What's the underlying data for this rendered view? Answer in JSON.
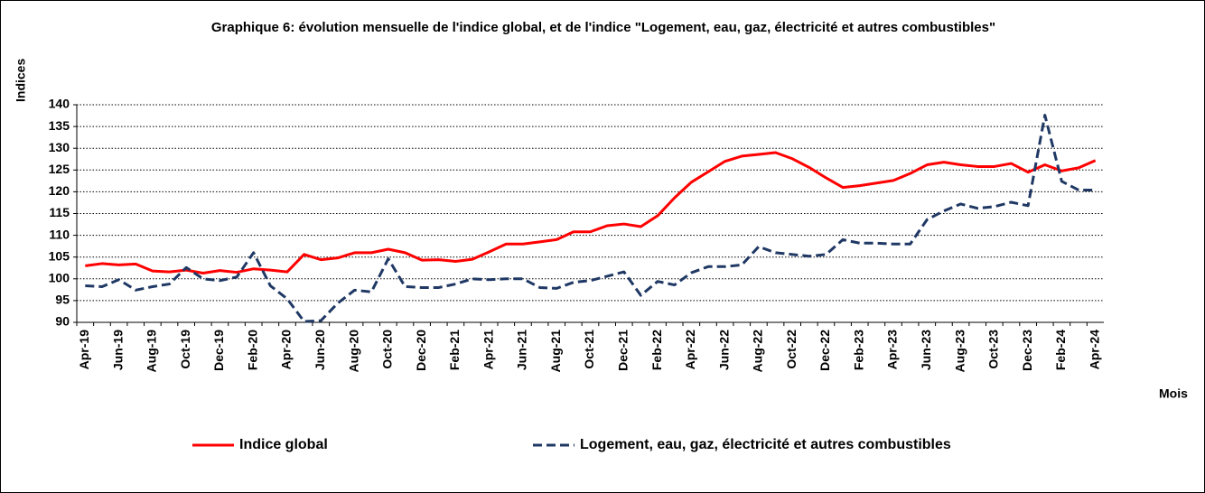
{
  "chart_data": {
    "type": "line",
    "title": "Graphique 6: évolution mensuelle de l'indice global, et de l'indice \"Logement, eau, gaz, électricité et autres combustibles\"",
    "y_label": "Indices",
    "x_label": "Mois",
    "categories": [
      "Apr-19",
      null,
      "Jun-19",
      null,
      "Aug-19",
      null,
      "Oct-19",
      null,
      "Dec-19",
      null,
      "Feb-20",
      null,
      "Apr-20",
      null,
      "Jun-20",
      null,
      "Aug-20",
      null,
      "Oct-20",
      null,
      "Dec-20",
      null,
      "Feb-21",
      null,
      "Apr-21",
      null,
      "Jun-21",
      null,
      "Aug-21",
      null,
      "Oct-21",
      null,
      "Dec-21",
      null,
      "Feb-22",
      null,
      "Apr-22",
      null,
      "Jun-22",
      null,
      "Aug-22",
      null,
      "Oct-22",
      null,
      "Dec-22",
      null,
      "Feb-23",
      null,
      "Apr-23",
      null,
      "Jun-23",
      null,
      "Aug-23",
      null,
      "Oct-23",
      null,
      "Dec-23",
      null,
      "Feb-24",
      null,
      "Apr-24"
    ],
    "series": [
      {
        "name": "Indice global",
        "color": "#ff0000",
        "dashed": false,
        "values": [
          103,
          103.5,
          103.2,
          103.4,
          101.8,
          101.6,
          102,
          101.3,
          101.9,
          101.5,
          102.3,
          102,
          101.6,
          105.6,
          104.4,
          104.8,
          106,
          106,
          106.8,
          106,
          104.3,
          104.4,
          104,
          104.5,
          106.2,
          108,
          108,
          108.5,
          109,
          110.8,
          110.8,
          112.2,
          112.6,
          112,
          114.5,
          118.6,
          122.2,
          124.6,
          127,
          128.2,
          128.6,
          129,
          127.6,
          125.6,
          123.2,
          121,
          121.4,
          122,
          122.6,
          124.2,
          126.2,
          126.8,
          126.2,
          125.8,
          125.8,
          126.5,
          124.5,
          126.2,
          124.8,
          125.5,
          127.2
        ]
      },
      {
        "name": "Logement, eau, gaz, électricité et autres combustibles",
        "color": "#1f3864",
        "dashed": true,
        "values": [
          98.4,
          98.2,
          99.8,
          97.4,
          98.2,
          98.8,
          102.6,
          100,
          99.6,
          100.4,
          106,
          98.4,
          95.4,
          90.2,
          90.4,
          94.4,
          97.4,
          97,
          104.6,
          98.2,
          98,
          98,
          98.8,
          100,
          99.8,
          100,
          100,
          98,
          97.8,
          99.2,
          99.6,
          100.6,
          101.6,
          96.2,
          99.4,
          98.6,
          101.4,
          102.8,
          102.8,
          103.2,
          107.4,
          106,
          105.6,
          105.2,
          105.6,
          109,
          108.2,
          108.2,
          108,
          108,
          113.6,
          115.6,
          117.2,
          116.2,
          116.6,
          117.6,
          116.8,
          137.6,
          122.4,
          120.4,
          120.4
        ]
      }
    ],
    "ylim": [
      90,
      140
    ],
    "yticks": [
      90,
      95,
      100,
      105,
      110,
      115,
      120,
      125,
      130,
      135,
      140
    ],
    "grid": true
  }
}
